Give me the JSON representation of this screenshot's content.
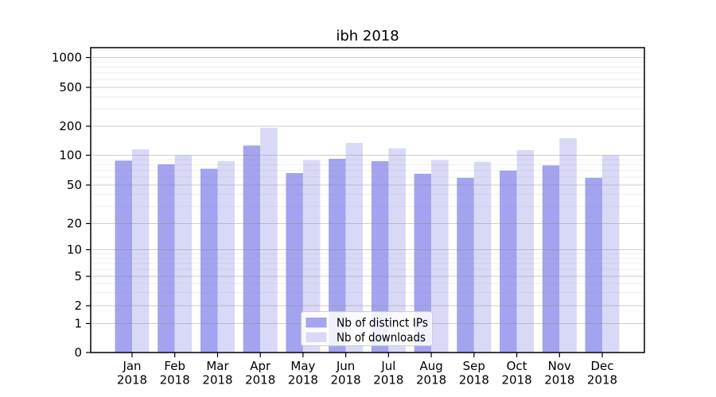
{
  "figure": {
    "background": "#ffffff"
  },
  "chart_data": {
    "type": "bar",
    "title": "ibh 2018",
    "categories": [
      "Jan 2018",
      "Feb 2018",
      "Mar 2018",
      "Apr 2018",
      "May 2018",
      "Jun 2018",
      "Jul 2018",
      "Aug 2018",
      "Sep 2018",
      "Oct 2018",
      "Nov 2018",
      "Dec 2018"
    ],
    "series": [
      {
        "name": "Nb of distinct IPs",
        "color": "#a3a3ef",
        "values": [
          88,
          81,
          73,
          126,
          66,
          92,
          87,
          65,
          59,
          70,
          79,
          59
        ]
      },
      {
        "name": "Nb of downloads",
        "color": "#d9d9f7",
        "values": [
          115,
          100,
          87,
          193,
          89,
          134,
          118,
          89,
          86,
          113,
          150,
          100
        ]
      }
    ],
    "y_axis": {
      "scale": "symlog",
      "tick_values": [
        0,
        1,
        2,
        5,
        10,
        20,
        50,
        100,
        200,
        500,
        1000
      ],
      "range_top": 1400,
      "grid": "major+minor"
    },
    "x_axis": {
      "year_line": "2018"
    },
    "legend": {
      "position": "lower-center"
    },
    "colors": {
      "spine": "#000000",
      "major_grid": "#bdbdbd",
      "minor_grid": "#e9e9e9",
      "legend_border": "#cccccc"
    }
  }
}
